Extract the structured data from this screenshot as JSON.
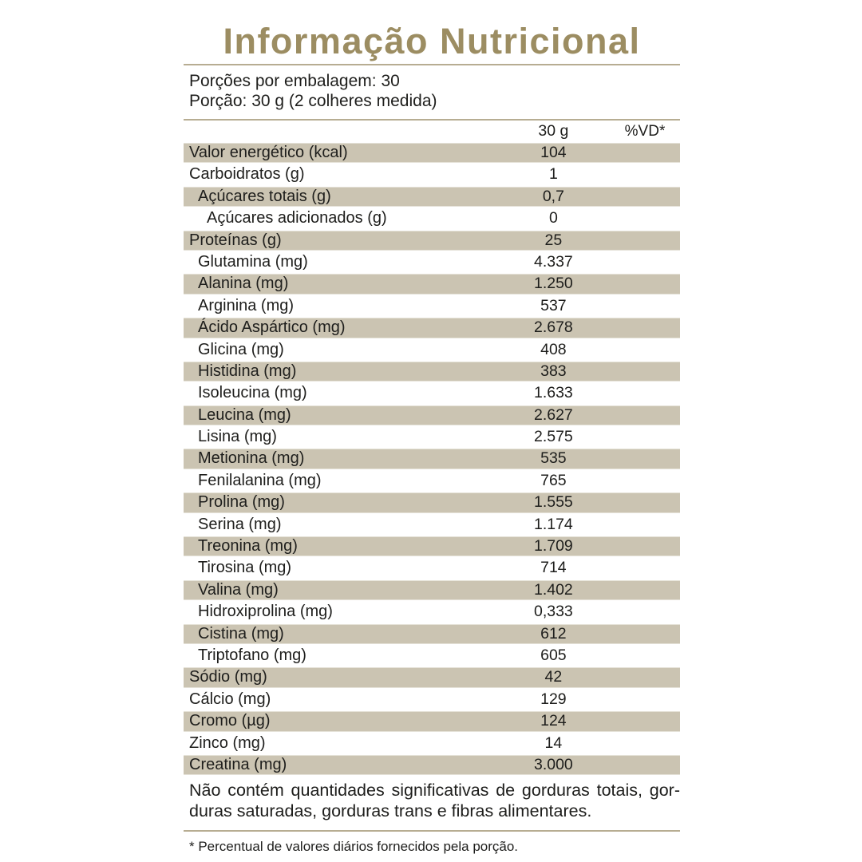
{
  "title": "Informação Nutricional",
  "serving_info": {
    "servings_per_package": "Porções por embalagem: 30",
    "serving_size": "Porção: 30 g (2 colheres medida)"
  },
  "columns": {
    "amount": "30 g",
    "daily_value": "%VD*"
  },
  "rows": [
    {
      "label": "Valor energético (kcal)",
      "value": "104",
      "indent": 0
    },
    {
      "label": "Carboidratos (g)",
      "value": "1",
      "indent": 0
    },
    {
      "label": "Açúcares totais (g)",
      "value": "0,7",
      "indent": 1
    },
    {
      "label": "Açúcares adicionados (g)",
      "value": "0",
      "indent": 2
    },
    {
      "label": "Proteínas (g)",
      "value": "25",
      "indent": 0
    },
    {
      "label": "Glutamina (mg)",
      "value": "4.337",
      "indent": 1
    },
    {
      "label": "Alanina (mg)",
      "value": "1.250",
      "indent": 1
    },
    {
      "label": "Arginina (mg)",
      "value": "537",
      "indent": 1
    },
    {
      "label": "Ácido Aspártico (mg)",
      "value": "2.678",
      "indent": 1
    },
    {
      "label": "Glicina (mg)",
      "value": "408",
      "indent": 1
    },
    {
      "label": "Histidina (mg)",
      "value": "383",
      "indent": 1
    },
    {
      "label": "Isoleucina (mg)",
      "value": "1.633",
      "indent": 1
    },
    {
      "label": "Leucina (mg)",
      "value": "2.627",
      "indent": 1
    },
    {
      "label": "Lisina (mg)",
      "value": "2.575",
      "indent": 1
    },
    {
      "label": "Metionina (mg)",
      "value": "535",
      "indent": 1
    },
    {
      "label": "Fenilalanina (mg)",
      "value": "765",
      "indent": 1
    },
    {
      "label": "Prolina (mg)",
      "value": "1.555",
      "indent": 1
    },
    {
      "label": "Serina (mg)",
      "value": "1.174",
      "indent": 1
    },
    {
      "label": "Treonina (mg)",
      "value": "1.709",
      "indent": 1
    },
    {
      "label": "Tirosina (mg)",
      "value": "714",
      "indent": 1
    },
    {
      "label": "Valina (mg)",
      "value": "1.402",
      "indent": 1
    },
    {
      "label": "Hidroxiprolina (mg)",
      "value": "0,333",
      "indent": 1
    },
    {
      "label": "Cistina (mg)",
      "value": "612",
      "indent": 1
    },
    {
      "label": "Triptofano (mg)",
      "value": "605",
      "indent": 1
    },
    {
      "label": "Sódio (mg)",
      "value": "42",
      "indent": 0
    },
    {
      "label": "Cálcio (mg)",
      "value": "129",
      "indent": 0
    },
    {
      "label": "Cromo (µg)",
      "value": "124",
      "indent": 0
    },
    {
      "label": "Zinco (mg)",
      "value": "14",
      "indent": 0
    },
    {
      "label": "Creatina (mg)",
      "value": "3.000",
      "indent": 0
    }
  ],
  "footer": {
    "no_significant_lines": [
      "Não contém quantidades significativas de gorduras totais, gor-",
      "duras saturadas, gorduras trans e fibras alimentares."
    ],
    "footnote": "* Percentual de valores diários fornecidos pela porção."
  },
  "colors": {
    "accent": "#9c8d62",
    "band": "#cbc4b2",
    "rule": "#b7ad92",
    "text": "#1e1e1c"
  }
}
